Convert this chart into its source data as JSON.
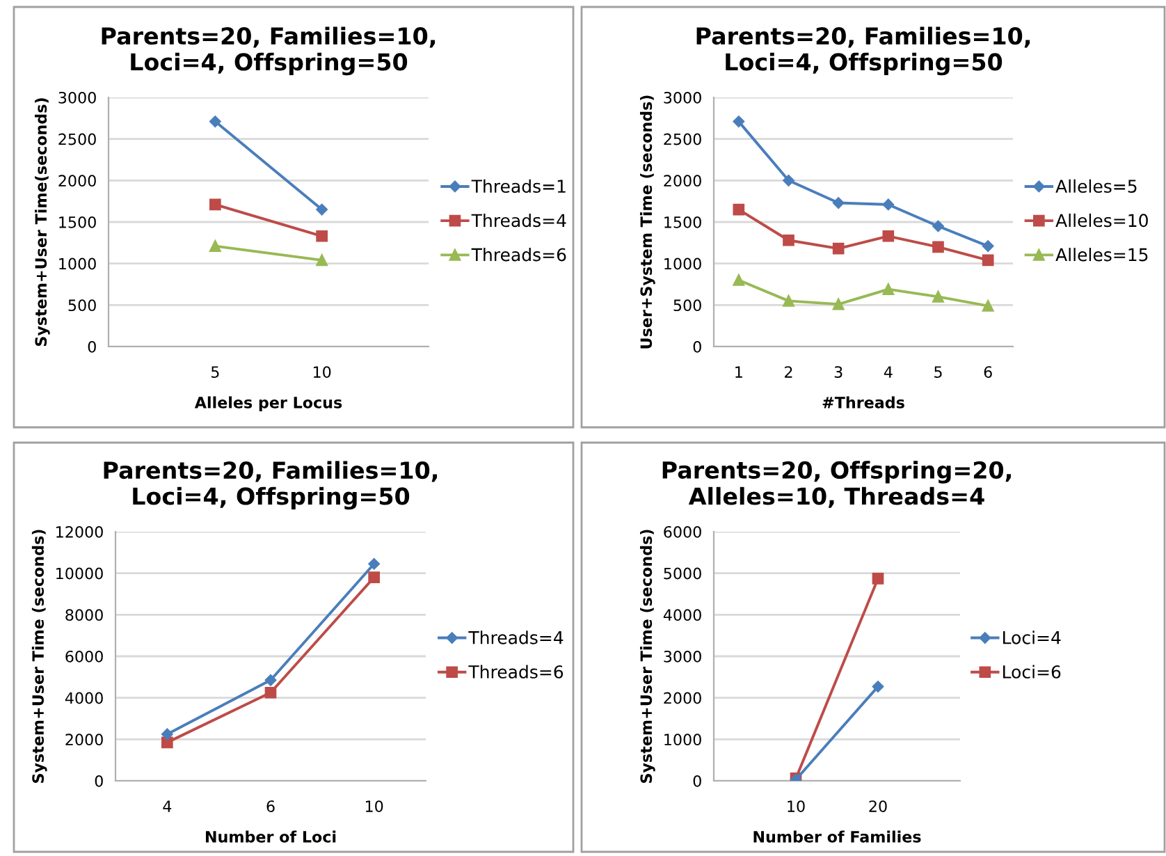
{
  "chart_data": [
    {
      "type": "line",
      "title": "Parents=20, Families=10,\nLoci=4, Offspring=50",
      "xlabel": "Alleles per Locus",
      "ylabel": "System+User Time(seconds)",
      "categories": [
        "5",
        "10"
      ],
      "ylim": [
        0,
        3000
      ],
      "yticks": [
        0,
        500,
        1000,
        1500,
        2000,
        2500,
        3000
      ],
      "grid": "y",
      "legend": "right",
      "series": [
        {
          "name": "Threads=1",
          "color": "#4a7ebb",
          "marker": "diamond",
          "values": [
            2710,
            1650
          ]
        },
        {
          "name": "Threads=4",
          "color": "#be4b48",
          "marker": "square",
          "values": [
            1710,
            1330
          ]
        },
        {
          "name": "Threads=6",
          "color": "#98b954",
          "marker": "triangle",
          "values": [
            1210,
            1040
          ]
        }
      ]
    },
    {
      "type": "line",
      "title": "Parents=20, Families=10,\nLoci=4, Offspring=50",
      "xlabel": "#Threads",
      "ylabel": "User+System Time (seconds)",
      "categories": [
        "1",
        "2",
        "3",
        "4",
        "5",
        "6"
      ],
      "ylim": [
        0,
        3000
      ],
      "yticks": [
        0,
        500,
        1000,
        1500,
        2000,
        2500,
        3000
      ],
      "grid": "y",
      "legend": "right",
      "series": [
        {
          "name": "Alleles=5",
          "color": "#4a7ebb",
          "marker": "diamond",
          "values": [
            2710,
            2000,
            1730,
            1710,
            1450,
            1210
          ]
        },
        {
          "name": "Alleles=10",
          "color": "#be4b48",
          "marker": "square",
          "values": [
            1650,
            1280,
            1180,
            1330,
            1200,
            1040
          ]
        },
        {
          "name": "Alleles=15",
          "color": "#98b954",
          "marker": "triangle",
          "values": [
            800,
            550,
            510,
            690,
            600,
            490
          ]
        }
      ]
    },
    {
      "type": "line",
      "title": "Parents=20, Families=10,\nLoci=4, Offspring=50",
      "xlabel": "Number of Loci",
      "ylabel": "System+User Time (seconds)",
      "categories": [
        "4",
        "6",
        "10"
      ],
      "ylim": [
        0,
        12000
      ],
      "yticks": [
        0,
        2000,
        4000,
        6000,
        8000,
        10000,
        12000
      ],
      "grid": "y",
      "legend": "right",
      "series": [
        {
          "name": "Threads=4",
          "color": "#4a7ebb",
          "marker": "diamond",
          "values": [
            2250,
            4850,
            10450
          ]
        },
        {
          "name": "Threads=6",
          "color": "#be4b48",
          "marker": "square",
          "values": [
            1850,
            4250,
            9800
          ]
        }
      ]
    },
    {
      "type": "line",
      "title": "Parents=20, Offspring=20,\nAlleles=10, Threads=4",
      "xlabel": "Number of Families",
      "ylabel": "System+User Time (seconds)",
      "categories": [
        "10",
        "20"
      ],
      "ylim": [
        0,
        6000
      ],
      "yticks": [
        0,
        1000,
        2000,
        3000,
        4000,
        5000,
        6000
      ],
      "grid": "y",
      "legend": "right",
      "series": [
        {
          "name": "Loci=4",
          "color": "#4a7ebb",
          "marker": "diamond",
          "values": [
            30,
            2270
          ]
        },
        {
          "name": "Loci=6",
          "color": "#be4b48",
          "marker": "square",
          "values": [
            60,
            4870
          ]
        }
      ]
    }
  ]
}
